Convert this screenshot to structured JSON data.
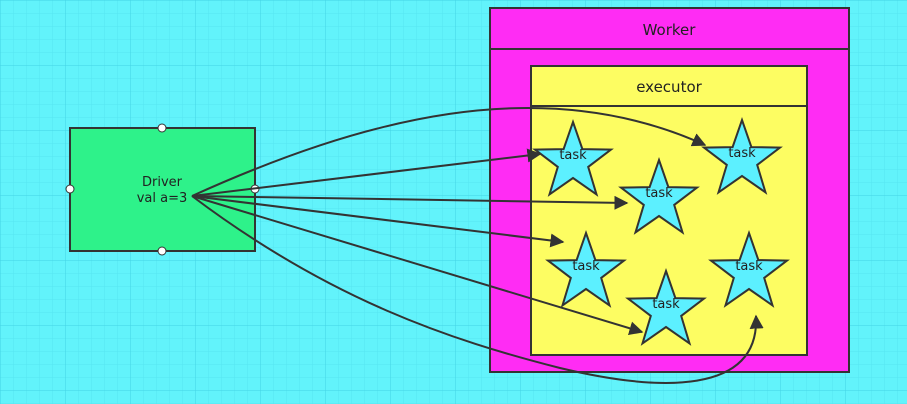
{
  "driver": {
    "line1": "Driver",
    "line2": "val a=3"
  },
  "worker": {
    "title": "Worker"
  },
  "executor": {
    "title": "executor"
  },
  "task_label": "task",
  "tasks": [
    "task",
    "task",
    "task",
    "task",
    "task",
    "task"
  ],
  "colors": {
    "background": "#62f3fb",
    "grid": "#4fdcea",
    "driver_fill": "#2ef28a",
    "worker_fill": "#ff2cf4",
    "executor_fill": "#fdfd62",
    "star_fill": "#5cf0ff",
    "stroke": "#333333"
  }
}
